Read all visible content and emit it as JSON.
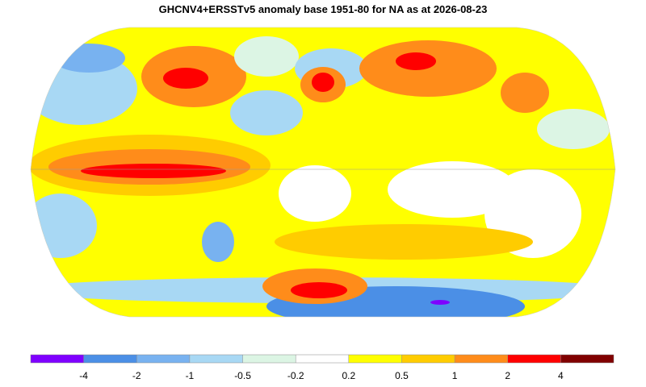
{
  "title": "GHCNV4+ERSSTv5 anomaly base 1951-80 for NA as at 2026-08-23",
  "legend": {
    "colors": [
      "#7f00ff",
      "#4b8fe6",
      "#78b2f0",
      "#a8d8f4",
      "#dcf5e4",
      "#ffffff",
      "#ffff00",
      "#ffcc00",
      "#ff8c1a",
      "#ff0000",
      "#800000"
    ],
    "ticks": [
      -4,
      -2,
      -1,
      -0.5,
      -0.2,
      0.2,
      0.5,
      1,
      2,
      4
    ]
  }
}
